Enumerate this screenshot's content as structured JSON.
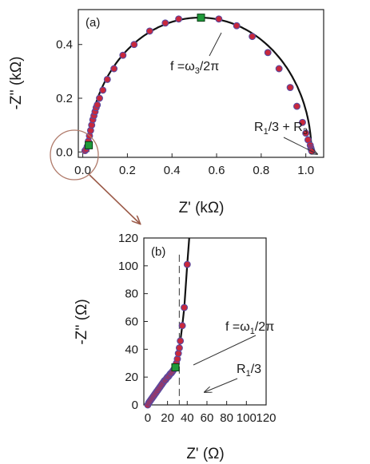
{
  "chart_data": [
    {
      "panel": "(a)",
      "type": "scatter",
      "xlabel": "Z' (kΩ)",
      "ylabel": "-Z'' (kΩ)",
      "xlim": [
        -0.02,
        1.08
      ],
      "ylim": [
        -0.02,
        0.53
      ],
      "x_ticks": [
        "0.0",
        "0.2",
        "0.4",
        "0.6",
        "0.8",
        "1.0"
      ],
      "y_ticks": [
        "0.0",
        "0.2",
        "0.4"
      ],
      "x_tick_values": [
        0.0,
        0.2,
        0.4,
        0.6,
        0.8,
        1.0
      ],
      "y_tick_values": [
        0.0,
        0.2,
        0.4
      ],
      "arc": {
        "center": 0.525,
        "radius": 0.5
      },
      "points_x": [
        0.01,
        0.015,
        0.02,
        0.025,
        0.03,
        0.035,
        0.04,
        0.045,
        0.05,
        0.055,
        0.06,
        0.065,
        0.075,
        0.09,
        0.11,
        0.14,
        0.18,
        0.23,
        0.3,
        0.37,
        0.43,
        0.53,
        0.61,
        0.69,
        0.76,
        0.83,
        0.88,
        0.93,
        0.96,
        0.985,
        1.0,
        1.01,
        1.02,
        1.023,
        1.025,
        1.027
      ],
      "points_y": [
        0.005,
        0.01,
        0.02,
        0.04,
        0.06,
        0.08,
        0.1,
        0.12,
        0.135,
        0.15,
        0.165,
        0.175,
        0.2,
        0.23,
        0.27,
        0.31,
        0.36,
        0.4,
        0.45,
        0.48,
        0.495,
        0.5,
        0.495,
        0.47,
        0.43,
        0.37,
        0.31,
        0.24,
        0.17,
        0.11,
        0.07,
        0.045,
        0.025,
        0.015,
        0.008,
        0.003
      ],
      "markers": [
        {
          "x": 0.53,
          "y": 0.5
        },
        {
          "x": 0.027,
          "y": 0.025
        }
      ],
      "annotations": [
        {
          "main": "f =ω",
          "sub": "3",
          "tail": "/2π"
        },
        {
          "main": "R",
          "sub": "1",
          "tail": "/3 + R",
          "sub2": "3"
        }
      ]
    },
    {
      "panel": "(b)",
      "type": "scatter",
      "xlabel": "Z' (Ω)",
      "ylabel": "-Z'' (Ω)",
      "xlim": [
        -4,
        120
      ],
      "ylim": [
        0,
        120
      ],
      "x_ticks": [
        "0",
        "20",
        "40",
        "60",
        "80",
        "100",
        "120"
      ],
      "y_ticks": [
        "0",
        "20",
        "40",
        "60",
        "80",
        "100",
        "120"
      ],
      "x_tick_values": [
        0,
        20,
        40,
        60,
        80,
        100,
        120
      ],
      "y_tick_values": [
        0,
        20,
        40,
        60,
        80,
        100,
        120
      ],
      "dashed_x": 32,
      "points_x": [
        0,
        1,
        2,
        3,
        4,
        5,
        6,
        7,
        8,
        9,
        10,
        11,
        12,
        13,
        14,
        15,
        16,
        17,
        18,
        19,
        20,
        21,
        22,
        23,
        24,
        25,
        26,
        27,
        28,
        29,
        30,
        31,
        32,
        33,
        35,
        37,
        40
      ],
      "points_y": [
        0,
        1.5,
        2.5,
        3.5,
        4.5,
        5.5,
        6.5,
        7.5,
        8.5,
        9.5,
        10.5,
        11.5,
        12.5,
        13.5,
        14.5,
        15.5,
        16.5,
        17.5,
        18,
        19,
        20,
        20.5,
        21.5,
        22.5,
        23,
        24,
        25,
        26,
        27,
        30,
        33,
        37,
        41,
        46,
        57,
        70,
        101
      ],
      "markers": [
        {
          "x": 28,
          "y": 27
        }
      ],
      "line_extra": [
        [
          40,
          101
        ],
        [
          42,
          120
        ]
      ],
      "annotations": [
        {
          "main": "f =ω",
          "sub": "1",
          "tail": "/2π"
        },
        {
          "main": "R",
          "sub": "1",
          "tail": "/3"
        }
      ]
    }
  ]
}
